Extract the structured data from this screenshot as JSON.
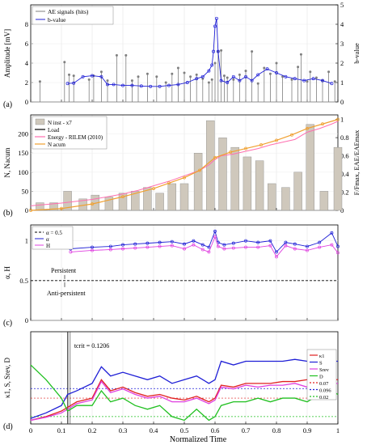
{
  "figure": {
    "xlabel": "Normalized Time",
    "xticks": [
      "0",
      "0.1",
      "0.2",
      "0.3",
      "0.4",
      "0.5",
      "0.6",
      "0.7",
      "0.8",
      "0.9",
      "1"
    ]
  },
  "chart_data": [
    {
      "panel": "a",
      "panel_label": "(a)",
      "type": "scatter",
      "ylabel": "Amplitude [mV]",
      "y2label": "b-value",
      "ylim": [
        0,
        10
      ],
      "y2lim": [
        0,
        5
      ],
      "yticks": [
        "0",
        "2",
        "4",
        "6",
        "8"
      ],
      "y2ticks": [
        "0",
        "1",
        "2",
        "3",
        "4",
        "5"
      ],
      "legend": [
        "AE signals (hits)",
        "b-value"
      ],
      "legend_position": "top-left",
      "colors": {
        "hits": "#7f7f7f",
        "bvalue": "#1f1fd6"
      },
      "series": [
        {
          "name": "AE signals (hits)",
          "x": [
            0.03,
            0.11,
            0.125,
            0.14,
            0.19,
            0.205,
            0.23,
            0.25,
            0.28,
            0.31,
            0.33,
            0.35,
            0.38,
            0.41,
            0.44,
            0.46,
            0.48,
            0.5,
            0.52,
            0.54,
            0.56,
            0.58,
            0.59,
            0.6,
            0.61,
            0.62,
            0.63,
            0.64,
            0.66,
            0.68,
            0.7,
            0.72,
            0.74,
            0.76,
            0.78,
            0.8,
            0.82,
            0.85,
            0.87,
            0.88,
            0.9,
            0.91,
            0.93,
            0.95,
            0.97,
            0.99
          ],
          "y": [
            2.1,
            4.1,
            2.8,
            2.7,
            2.3,
            2.7,
            3.1,
            2.2,
            4.8,
            4.8,
            2.2,
            2.6,
            2.9,
            2.6,
            2.0,
            2.9,
            3.5,
            3.0,
            2.6,
            2.8,
            2.4,
            2.0,
            2.3,
            4.0,
            5.2,
            5.3,
            2.7,
            2.5,
            2.3,
            2.8,
            3.2,
            5.2,
            1.9,
            3.5,
            2.9,
            4.0,
            2.6,
            2.3,
            3.6,
            4.9,
            2.1,
            3.1,
            2.5,
            2.2,
            3.1,
            2.1
          ]
        },
        {
          "name": "b-value",
          "x": [
            0.12,
            0.14,
            0.17,
            0.2,
            0.23,
            0.25,
            0.27,
            0.3,
            0.33,
            0.36,
            0.39,
            0.42,
            0.45,
            0.48,
            0.51,
            0.54,
            0.56,
            0.58,
            0.59,
            0.595,
            0.6,
            0.605,
            0.61,
            0.62,
            0.64,
            0.66,
            0.68,
            0.7,
            0.72,
            0.74,
            0.77,
            0.8,
            0.83,
            0.86,
            0.89,
            0.92,
            0.95,
            0.98
          ],
          "y": [
            0.95,
            0.97,
            1.3,
            1.35,
            1.3,
            0.9,
            0.9,
            0.85,
            0.85,
            0.82,
            0.8,
            0.8,
            0.85,
            0.9,
            1.0,
            1.2,
            1.3,
            1.6,
            1.9,
            2.6,
            3.9,
            4.3,
            2.6,
            1.1,
            1.0,
            1.3,
            1.1,
            1.3,
            1.1,
            1.4,
            1.7,
            1.5,
            1.3,
            1.2,
            1.1,
            1.2,
            1.1,
            0.95
          ]
        }
      ]
    },
    {
      "panel": "b",
      "panel_label": "(b)",
      "type": "bar",
      "ylabel": "N, Nacum",
      "y2label": "F/Fmax, EAE/EAEmax",
      "ylim": [
        0,
        250
      ],
      "y2lim": [
        0,
        1.05
      ],
      "yticks": [
        "0",
        "50",
        "100",
        "150",
        "200"
      ],
      "y2ticks": [
        "0",
        "0.2",
        "0.4",
        "0.6",
        "0.8",
        "1"
      ],
      "legend": [
        "N inst - x7",
        "Load",
        "Energy - RILEM (2010)",
        "N acum"
      ],
      "legend_position": "top-left",
      "colors": {
        "bars": "#cfc8bc",
        "load": "#000000",
        "energy": "#ff6fb0",
        "nacum": "#f0a030"
      },
      "bars": {
        "x": [
          0.03,
          0.075,
          0.12,
          0.17,
          0.21,
          0.255,
          0.3,
          0.34,
          0.38,
          0.42,
          0.46,
          0.5,
          0.545,
          0.585,
          0.625,
          0.665,
          0.705,
          0.745,
          0.785,
          0.83,
          0.87,
          0.91,
          0.955,
          1.0
        ],
        "values": [
          20,
          20,
          50,
          30,
          40,
          35,
          45,
          50,
          60,
          45,
          70,
          70,
          150,
          235,
          190,
          165,
          140,
          130,
          70,
          60,
          100,
          225,
          50,
          165
        ]
      },
      "series": [
        {
          "name": "Load",
          "x": [
            0.0,
            0.06,
            0.1,
            0.14,
            0.18,
            0.22,
            0.26,
            0.3,
            0.34,
            0.38,
            0.42,
            0.46,
            0.5,
            0.54,
            0.58,
            0.62,
            0.66,
            0.7,
            0.74,
            0.78,
            0.82,
            0.86,
            0.9,
            0.94,
            0.98,
            1.0
          ],
          "y": [
            0.08,
            0.1,
            0.13,
            0.17,
            0.2,
            0.23,
            0.25,
            0.27,
            0.3,
            0.33,
            0.36,
            0.39,
            0.44,
            0.49,
            0.52,
            0.57,
            0.62,
            0.66,
            0.7,
            0.74,
            0.77,
            0.82,
            0.88,
            0.92,
            0.97,
            1.0
          ]
        },
        {
          "name": "Energy - RILEM (2010)",
          "x": [
            0.0,
            0.1,
            0.2,
            0.3,
            0.35,
            0.4,
            0.45,
            0.5,
            0.55,
            0.58,
            0.6,
            0.62,
            0.66,
            0.7,
            0.74,
            0.78,
            0.82,
            0.86,
            0.9,
            0.94,
            0.98,
            1.0
          ],
          "y": [
            0.05,
            0.08,
            0.12,
            0.18,
            0.22,
            0.27,
            0.32,
            0.38,
            0.44,
            0.5,
            0.56,
            0.6,
            0.62,
            0.65,
            0.68,
            0.72,
            0.75,
            0.78,
            0.86,
            0.9,
            0.95,
            0.98
          ]
        },
        {
          "name": "N acum",
          "x": [
            0.0,
            0.1,
            0.2,
            0.3,
            0.4,
            0.45,
            0.5,
            0.55,
            0.6,
            0.65,
            0.7,
            0.75,
            0.8,
            0.85,
            0.9,
            0.95,
            1.0
          ],
          "y": [
            0.0,
            0.02,
            0.07,
            0.15,
            0.24,
            0.3,
            0.36,
            0.44,
            0.58,
            0.64,
            0.68,
            0.72,
            0.77,
            0.83,
            0.9,
            0.95,
            1.0
          ]
        }
      ]
    },
    {
      "panel": "c",
      "panel_label": "(c)",
      "type": "line",
      "ylabel": "α, H",
      "ylim": [
        0,
        1.2
      ],
      "yticks": [
        "0",
        "0.5",
        "1"
      ],
      "legend": [
        "α = 0.5",
        "α",
        "H"
      ],
      "legend_position": "top-left",
      "annotations": [
        "Persistent",
        "Anti-persistent"
      ],
      "colors": {
        "ref": "#000000",
        "alpha": "#1f1fd6",
        "H": "#e040e0"
      },
      "reference_line": 0.5,
      "series": [
        {
          "name": "α",
          "x": [
            0.13,
            0.2,
            0.26,
            0.3,
            0.34,
            0.38,
            0.42,
            0.46,
            0.5,
            0.53,
            0.56,
            0.58,
            0.6,
            0.61,
            0.63,
            0.66,
            0.7,
            0.74,
            0.78,
            0.8,
            0.83,
            0.86,
            0.9,
            0.94,
            0.98,
            1.0
          ],
          "y": [
            0.9,
            0.92,
            0.93,
            0.95,
            0.96,
            0.97,
            0.98,
            0.99,
            0.96,
            1.0,
            0.95,
            0.92,
            1.12,
            0.98,
            0.95,
            0.97,
            1.0,
            0.98,
            1.0,
            0.86,
            0.98,
            0.96,
            0.93,
            0.98,
            1.1,
            0.93
          ]
        },
        {
          "name": "H",
          "x": [
            0.13,
            0.2,
            0.26,
            0.3,
            0.34,
            0.38,
            0.42,
            0.46,
            0.5,
            0.53,
            0.56,
            0.58,
            0.6,
            0.61,
            0.63,
            0.66,
            0.7,
            0.74,
            0.78,
            0.8,
            0.83,
            0.86,
            0.9,
            0.94,
            0.98,
            1.0
          ],
          "y": [
            0.86,
            0.88,
            0.89,
            0.9,
            0.91,
            0.92,
            0.93,
            0.94,
            0.9,
            0.95,
            0.89,
            0.86,
            1.05,
            0.93,
            0.9,
            0.91,
            0.92,
            0.92,
            0.94,
            0.8,
            0.94,
            0.9,
            0.88,
            0.92,
            0.95,
            0.85
          ]
        }
      ]
    },
    {
      "panel": "d",
      "panel_label": "(d)",
      "type": "line",
      "ylabel": "κ1, S, Srev, D",
      "ylim": [
        0,
        0.25
      ],
      "annotation": "tcrit = 0.1206",
      "tcrit": 0.1206,
      "legend": [
        "κ1",
        "S",
        "Srev",
        "D",
        "0.07",
        "0.096",
        "0.02"
      ],
      "legend_position": "right",
      "colors": {
        "k1": "#e02020",
        "S": "#1f1fd6",
        "Srev": "#e040e0",
        "D": "#20c020",
        "thr007": "#e02020",
        "thr0096": "#1f1fd6",
        "thr002": "#20c020"
      },
      "thresholds": [
        0.07,
        0.096,
        0.02
      ],
      "series": [
        {
          "name": "κ1",
          "x": [
            0.0,
            0.05,
            0.1,
            0.12,
            0.15,
            0.2,
            0.23,
            0.26,
            0.3,
            0.34,
            0.38,
            0.42,
            0.46,
            0.5,
            0.54,
            0.58,
            0.6,
            0.62,
            0.66,
            0.7,
            0.74,
            0.78,
            0.82,
            0.86,
            0.9,
            0.94,
            0.98,
            1.0
          ],
          "y": [
            0.01,
            0.02,
            0.035,
            0.045,
            0.06,
            0.07,
            0.12,
            0.09,
            0.1,
            0.085,
            0.075,
            0.08,
            0.07,
            0.065,
            0.075,
            0.06,
            0.07,
            0.105,
            0.1,
            0.11,
            0.11,
            0.11,
            0.115,
            0.115,
            0.12,
            0.12,
            0.12,
            0.12
          ]
        },
        {
          "name": "S",
          "x": [
            0.0,
            0.05,
            0.1,
            0.12,
            0.15,
            0.2,
            0.23,
            0.26,
            0.3,
            0.34,
            0.38,
            0.42,
            0.46,
            0.5,
            0.54,
            0.58,
            0.6,
            0.62,
            0.66,
            0.7,
            0.74,
            0.78,
            0.82,
            0.86,
            0.9,
            0.94,
            0.98,
            1.0
          ],
          "y": [
            0.015,
            0.03,
            0.05,
            0.08,
            0.09,
            0.11,
            0.155,
            0.13,
            0.14,
            0.13,
            0.12,
            0.13,
            0.11,
            0.12,
            0.13,
            0.11,
            0.12,
            0.17,
            0.16,
            0.17,
            0.17,
            0.17,
            0.17,
            0.175,
            0.17,
            0.17,
            0.17,
            0.17
          ]
        },
        {
          "name": "Srev",
          "x": [
            0.0,
            0.05,
            0.1,
            0.12,
            0.15,
            0.2,
            0.23,
            0.26,
            0.3,
            0.34,
            0.38,
            0.42,
            0.46,
            0.5,
            0.54,
            0.58,
            0.6,
            0.62,
            0.66,
            0.7,
            0.74,
            0.78,
            0.82,
            0.86,
            0.9,
            0.94,
            0.98,
            1.0
          ],
          "y": [
            0.01,
            0.018,
            0.03,
            0.04,
            0.055,
            0.065,
            0.115,
            0.085,
            0.095,
            0.08,
            0.07,
            0.075,
            0.06,
            0.06,
            0.07,
            0.055,
            0.065,
            0.1,
            0.095,
            0.105,
            0.1,
            0.105,
            0.105,
            0.11,
            0.1,
            0.105,
            0.11,
            0.11
          ]
        },
        {
          "name": "D",
          "x": [
            0.0,
            0.05,
            0.1,
            0.12,
            0.15,
            0.2,
            0.23,
            0.26,
            0.3,
            0.34,
            0.38,
            0.42,
            0.46,
            0.5,
            0.54,
            0.58,
            0.6,
            0.62,
            0.66,
            0.7,
            0.74,
            0.78,
            0.82,
            0.86,
            0.9,
            0.94,
            0.98,
            1.0
          ],
          "y": [
            0.16,
            0.12,
            0.07,
            0.035,
            0.05,
            0.05,
            0.09,
            0.06,
            0.07,
            0.05,
            0.04,
            0.05,
            0.02,
            0.01,
            0.04,
            0.01,
            0.02,
            0.05,
            0.06,
            0.06,
            0.07,
            0.06,
            0.07,
            0.07,
            0.06,
            0.08,
            0.09,
            0.08
          ]
        }
      ]
    }
  ]
}
